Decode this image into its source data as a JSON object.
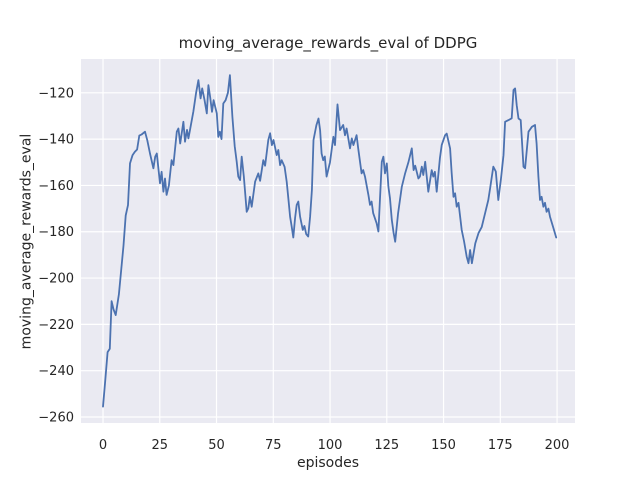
{
  "figure": {
    "title": "moving_average_rewards_eval of DDPG"
  },
  "chart_data": {
    "type": "line",
    "title": "moving_average_rewards_eval of DDPG",
    "xlabel": "episodes",
    "ylabel": "moving_average_rewards_eval",
    "legend": "none",
    "grid": true,
    "xlim": [
      -9.7,
      207.9
    ],
    "ylim": [
      -262.6,
      -105.4
    ],
    "xticks": [
      0,
      25,
      50,
      75,
      100,
      125,
      150,
      175,
      200
    ],
    "xtick_labels": [
      "0",
      "25",
      "50",
      "75",
      "100",
      "125",
      "150",
      "175",
      "200"
    ],
    "yticks": [
      -120,
      -140,
      -160,
      -180,
      -200,
      -220,
      -240,
      -260
    ],
    "ytick_labels": [
      "−120",
      "−140",
      "−160",
      "−180",
      "−200",
      "−220",
      "−240",
      "−260"
    ],
    "series_name": "moving_average_rewards_eval",
    "x": [
      0,
      1,
      2,
      3,
      3.8,
      4.6,
      5.6,
      7,
      8,
      9,
      10,
      11,
      11.9,
      13,
      14,
      15,
      16,
      17,
      18.5,
      19.5,
      20.7,
      22.2,
      23,
      23.7,
      25.1,
      25.8,
      26.6,
      27.3,
      28,
      29,
      30.2,
      31,
      32.5,
      33.2,
      34,
      35.4,
      36.1,
      37,
      37.6,
      38.3,
      39.8,
      41,
      42,
      43,
      43.7,
      44.7,
      45.7,
      46.4,
      47.2,
      48,
      48.7,
      50.1,
      50.8,
      51.5,
      52.2,
      53,
      54,
      55,
      55.9,
      57,
      58,
      58.9,
      59.6,
      60.4,
      61.1,
      62,
      63.3,
      64,
      64.7,
      65.5,
      67,
      68.4,
      69.2,
      70.6,
      71.4,
      72.8,
      73.6,
      74.4,
      75.1,
      76.5,
      77.2,
      78,
      78.7,
      80,
      80.9,
      81.7,
      82.4,
      83.1,
      83.8,
      84.6,
      85.3,
      86,
      86.8,
      88,
      88.7,
      89.5,
      90.4,
      91.2,
      92,
      92.7,
      94,
      94.9,
      95.6,
      96.3,
      97,
      97.7,
      98.5,
      100,
      101.5,
      102.2,
      103.3,
      104.4,
      105.8,
      106.6,
      107.3,
      108.8,
      109.6,
      110.3,
      111.7,
      112.4,
      113.9,
      114.6,
      115.4,
      116.9,
      117.6,
      118.3,
      119,
      120.5,
      121.3,
      122,
      122.8,
      123.5,
      124.2,
      125,
      125.7,
      126.4,
      127.2,
      128,
      128.7,
      130,
      131.6,
      133,
      134.5,
      136,
      136.8,
      137.5,
      138.9,
      139.6,
      140.4,
      141.1,
      141.9,
      143.3,
      144.8,
      145.5,
      146.2,
      147,
      148.4,
      149.2,
      150.7,
      151.4,
      152.9,
      153.6,
      154.4,
      155.1,
      155.8,
      156.6,
      158,
      159,
      160.2,
      161,
      161.7,
      162.5,
      164,
      165.4,
      166.8,
      168.3,
      169.7,
      170.5,
      171.9,
      173,
      174.1,
      175.3,
      176.4,
      177.1,
      178.6,
      180,
      180.8,
      181.5,
      182.2,
      183,
      184,
      185.2,
      185.9,
      187.4,
      188.9,
      190.3,
      191,
      191.8,
      192.5,
      193.2,
      194,
      194.7,
      195.4,
      196.2,
      196.9,
      198.4,
      199.6
    ],
    "y": [
      -255.5,
      -244,
      -232,
      -230.5,
      -210,
      -213.5,
      -216,
      -207,
      -196.5,
      -186,
      -173,
      -168.5,
      -150.5,
      -147,
      -145.5,
      -144.5,
      -138.5,
      -138,
      -136.8,
      -140.5,
      -146.2,
      -152.6,
      -147.6,
      -146.2,
      -159.1,
      -154.1,
      -162.7,
      -157,
      -164.1,
      -160,
      -149.1,
      -151.2,
      -136.8,
      -135.4,
      -141.9,
      -132.5,
      -141.1,
      -136,
      -139.7,
      -136,
      -128,
      -120,
      -114.5,
      -122.4,
      -118.1,
      -123,
      -128.9,
      -116.7,
      -122,
      -128.2,
      -123.2,
      -128.9,
      -139,
      -136.8,
      -140,
      -124.6,
      -123.2,
      -120,
      -112.4,
      -130.4,
      -143,
      -149.8,
      -156.2,
      -157.7,
      -147.6,
      -156,
      -171.4,
      -169.9,
      -164.9,
      -169.2,
      -158.4,
      -154.8,
      -158,
      -149.1,
      -151.5,
      -140.4,
      -137.5,
      -142.6,
      -140.4,
      -146.9,
      -144.7,
      -151.2,
      -149.1,
      -152,
      -158.4,
      -166.3,
      -173.5,
      -177.8,
      -182.5,
      -174,
      -168.4,
      -167,
      -173.5,
      -179.2,
      -177.5,
      -181,
      -182.1,
      -173.5,
      -162,
      -140.4,
      -134,
      -131.1,
      -136.1,
      -146.2,
      -149.1,
      -147.5,
      -156.2,
      -150,
      -139,
      -142.6,
      -125,
      -136.1,
      -133.9,
      -138.3,
      -135.4,
      -144,
      -139.7,
      -142.6,
      -138.3,
      -144,
      -154.8,
      -153.4,
      -156.2,
      -164.1,
      -168.4,
      -167,
      -172,
      -176.3,
      -179.9,
      -165.6,
      -149.8,
      -147.6,
      -154.8,
      -150.5,
      -160.6,
      -165.6,
      -174.9,
      -180.5,
      -184.3,
      -172,
      -160.6,
      -155,
      -150,
      -144,
      -153.4,
      -151.5,
      -157,
      -156.2,
      -151.9,
      -155.5,
      -149.8,
      -162.7,
      -153.4,
      -156.2,
      -154.1,
      -162.7,
      -148.3,
      -142.6,
      -138.3,
      -137.6,
      -144,
      -154.8,
      -164.9,
      -163.4,
      -169.2,
      -167.5,
      -179.2,
      -184,
      -190.8,
      -193.6,
      -187.9,
      -193.6,
      -185,
      -180.6,
      -178,
      -172,
      -166.3,
      -161.3,
      -151.9,
      -154,
      -166.3,
      -157,
      -146.9,
      -132.5,
      -131.8,
      -131,
      -118.8,
      -118.1,
      -125.3,
      -131.1,
      -131.8,
      -151.9,
      -152.6,
      -136.8,
      -134.7,
      -133.9,
      -141.9,
      -156.2,
      -166.3,
      -164.9,
      -169.2,
      -167.5,
      -171.4,
      -170,
      -173.5,
      -178.4,
      -182.5
    ],
    "style": {
      "line_color": "#4c72b0",
      "line_width": 1.8,
      "axes_background": "#eaeaf2",
      "grid_color": "#ffffff",
      "figure_background": "#ffffff",
      "text_color": "#262626"
    }
  }
}
